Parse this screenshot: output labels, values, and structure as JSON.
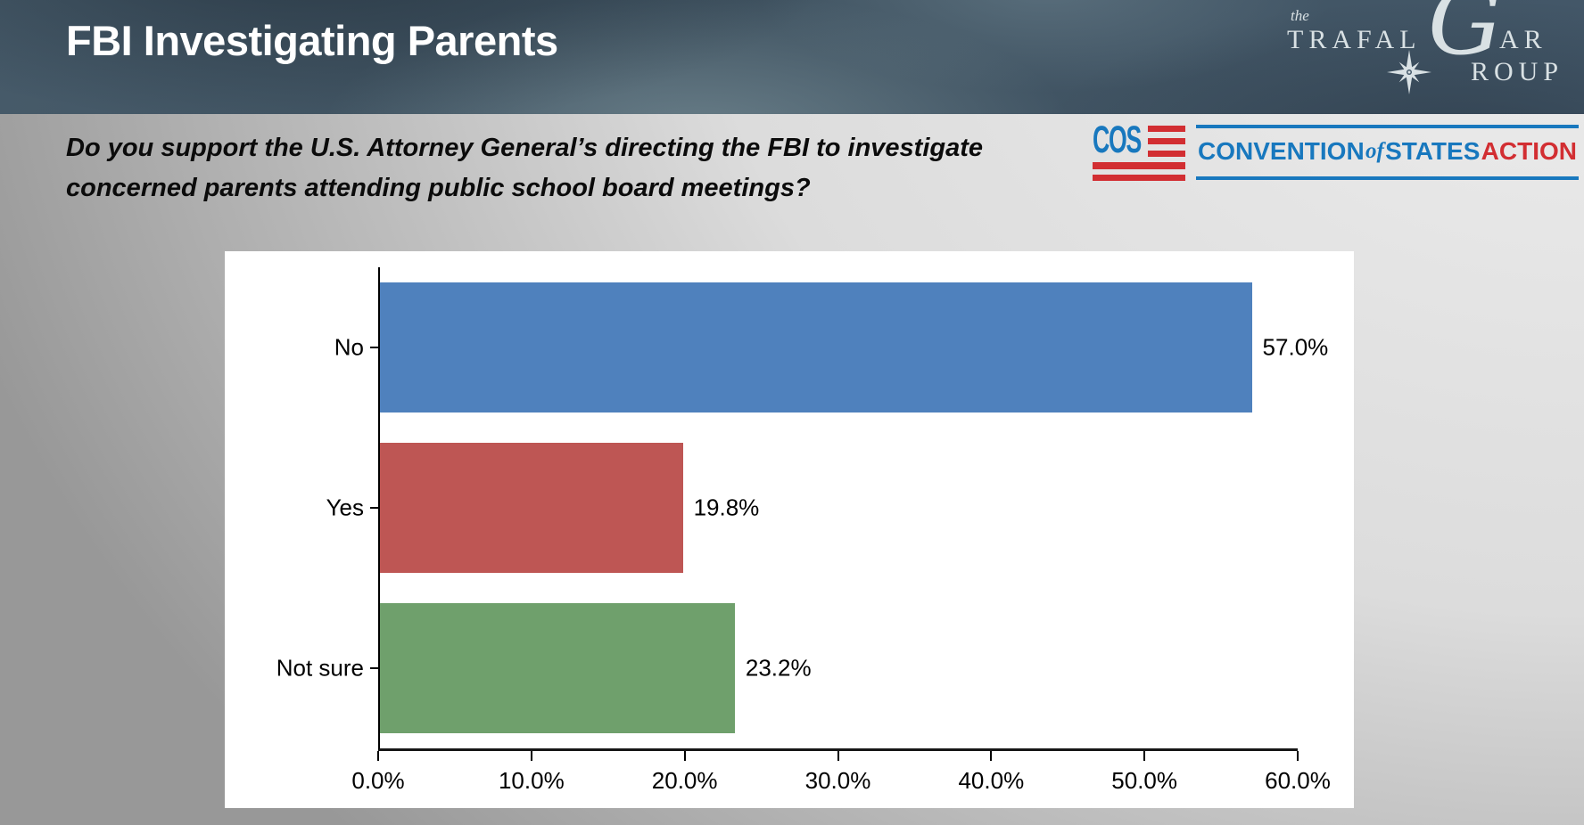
{
  "header": {
    "title": "FBI Investigating Parents",
    "trafalgar_logo": {
      "the": "the",
      "trafal": "TRAFAL",
      "g": "G",
      "ar": "AR",
      "roup": "ROUP",
      "color": "#D9E1E4"
    }
  },
  "question": {
    "line1": "Do you support the U.S. Attorney General’s directing the FBI to investigate",
    "line2": "concerned parents attending public school board meetings?"
  },
  "cos_logo": {
    "acronym": "COS",
    "word_convention": "CONVENTION",
    "word_of": "of",
    "word_states": "STATES",
    "word_action": "ACTION",
    "colors": {
      "blue": "#1878BE",
      "red": "#D22E32"
    }
  },
  "chart_data": {
    "type": "bar",
    "orientation": "horizontal",
    "categories": [
      "No",
      "Yes",
      "Not sure"
    ],
    "values": [
      57.0,
      19.8,
      23.2
    ],
    "labels": [
      "57.0%",
      "19.8%",
      "23.2%"
    ],
    "bar_colors": [
      "#4F81BD",
      "#BE5654",
      "#6FA06C"
    ],
    "xlim": [
      0,
      60
    ],
    "x_ticks": [
      "0.0%",
      "10.0%",
      "20.0%",
      "30.0%",
      "40.0%",
      "50.0%",
      "60.0%"
    ],
    "grid": false,
    "legend": false,
    "background": "#FFFFFF"
  }
}
